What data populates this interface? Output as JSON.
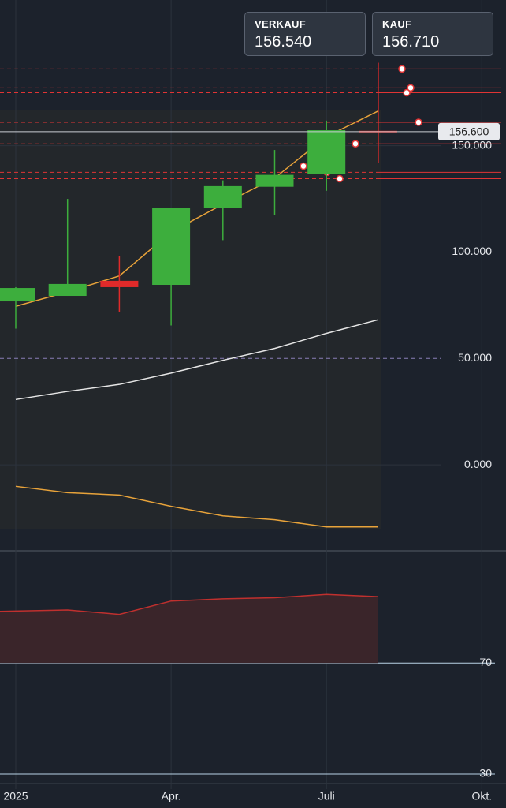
{
  "header": {
    "sell_label": "VERKAUF",
    "sell_price": "156.540",
    "buy_label": "KAUF",
    "buy_price": "156.710"
  },
  "chart_data": {
    "type": "candlestick",
    "categories": [
      "2025",
      null,
      null,
      "Apr.",
      null,
      null,
      "Juli",
      null
    ],
    "open": [
      76.8,
      79.4,
      86.5,
      84.6,
      120.6,
      130.7,
      136.7,
      157
    ],
    "close": [
      83.1,
      85.0,
      83.5,
      120.6,
      131,
      136.3,
      157.3,
      156.6
    ],
    "high": [
      83.5,
      125,
      98,
      120.6,
      133.7,
      148,
      161.8,
      189
    ],
    "low": [
      64,
      79.4,
      72,
      65.5,
      105.6,
      117.6,
      128.8,
      142
    ],
    "extra_x_label": "Okt.",
    "overlays": [
      {
        "color": "#e8a33a",
        "values": [
          74.5,
          81.3,
          88.8,
          109.4,
          122.5,
          134.8,
          154.3,
          166.3
        ]
      },
      {
        "color": "#e6e6e6",
        "values": [
          30.7,
          34.5,
          37.8,
          43.1,
          49.1,
          54.7,
          61.8,
          68.2
        ]
      },
      {
        "color": "#e8a33a",
        "values": [
          -10.1,
          -13.1,
          -14.2,
          -19.5,
          -24,
          -25.8,
          -29.2,
          -29.2
        ]
      }
    ],
    "levels": [
      186.1,
      177.2,
      174.9,
      161.0,
      150.9,
      140.4,
      137.5,
      134.5
    ],
    "level_color": "#e03434",
    "last_price": 156.6,
    "last_price_label": "156.600",
    "ylim": [
      -40.4,
      218.5
    ],
    "yticks": [
      {
        "value": 0,
        "label": "0.000"
      },
      {
        "value": 50,
        "label": "50.000"
      },
      {
        "value": 100,
        "label": "100.000"
      },
      {
        "value": 150,
        "label": "150.000"
      }
    ],
    "up_color": "#3dae3d",
    "down_color": "#e02a2a",
    "rsi": {
      "values": [
        88.6,
        89.1,
        87.5,
        92.3,
        93.1,
        93.5,
        94.7,
        93.9
      ],
      "color": "#c0302e",
      "ylim": [
        24.6,
        110.4
      ],
      "yticks": [
        30,
        70
      ]
    }
  }
}
